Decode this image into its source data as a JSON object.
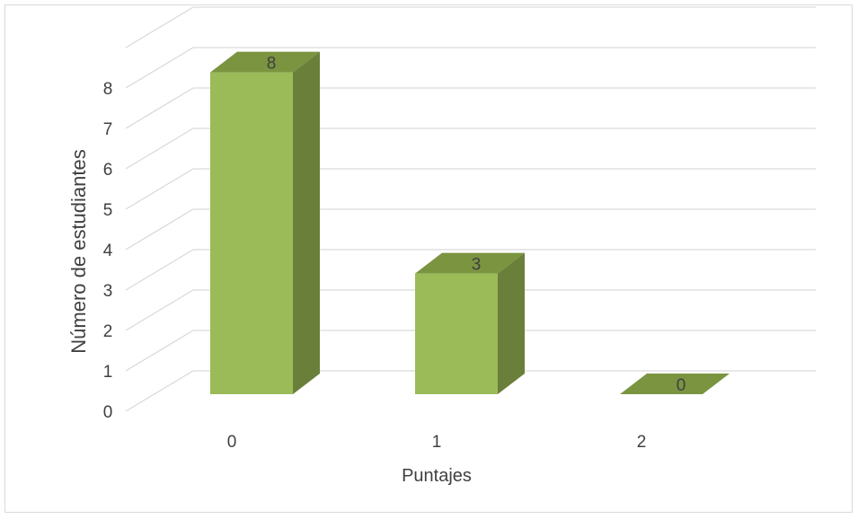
{
  "chart_data": {
    "type": "bar",
    "categories": [
      "0",
      "1",
      "2"
    ],
    "values": [
      8,
      3,
      0
    ],
    "data_labels": [
      "8",
      "3",
      "0"
    ],
    "xlabel": "Puntajes",
    "ylabel": "Número de estudiantes",
    "yticks": [
      "0",
      "1",
      "2",
      "3",
      "4",
      "5",
      "6",
      "7",
      "8"
    ],
    "ylim": [
      0,
      9
    ],
    "grid": true,
    "legend": "none",
    "bar_front_color": "#9bbb59",
    "bar_side_color": "#6a7f3a",
    "bar_top_color": "#7a9440",
    "grid_color": "#d9d9d9"
  }
}
